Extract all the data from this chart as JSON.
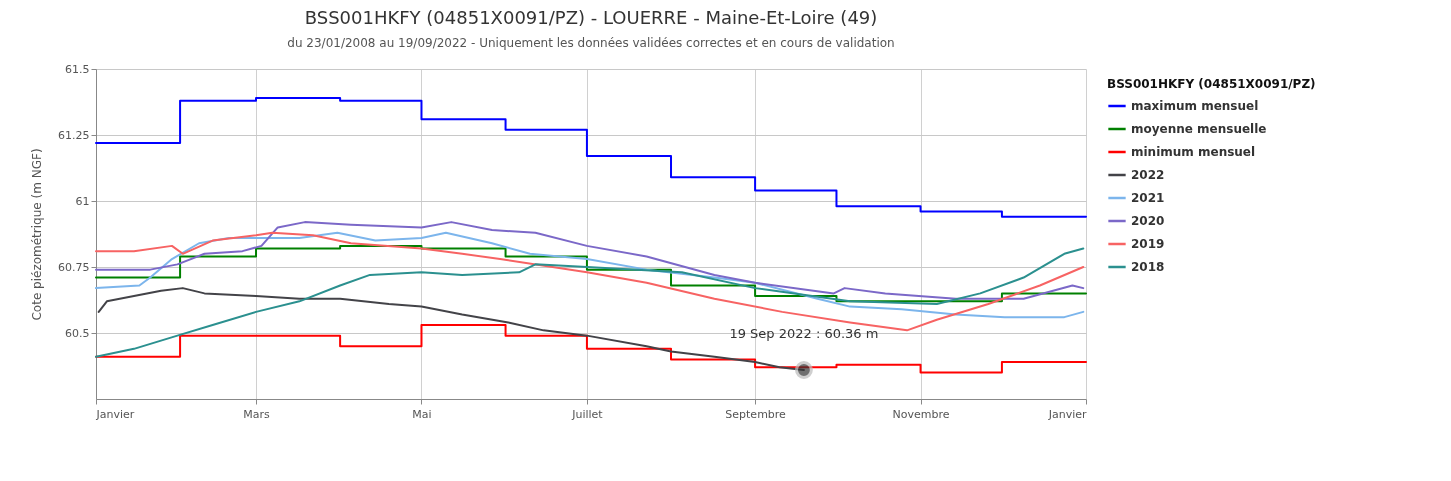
{
  "chart_data": {
    "type": "line",
    "title": "BSS001HKFY (04851X0091/PZ) - LOUERRE - Maine-Et-Loire (49)",
    "subtitle": "du 23/01/2008 au 19/09/2022 - Uniquement les données validées correctes et en cours de validation",
    "ylabel": "Cote piézométrique (m NGF)",
    "legend_title": "BSS001HKFY (04851X0091/PZ)",
    "xlim": [
      "2022-01-01",
      "2023-01-01"
    ],
    "xticks": [
      {
        "value": "2022-01-01",
        "label": "Janvier"
      },
      {
        "value": "2022-03-01",
        "label": "Mars"
      },
      {
        "value": "2022-05-01",
        "label": "Mai"
      },
      {
        "value": "2022-07-01",
        "label": "Juillet"
      },
      {
        "value": "2022-09-01",
        "label": "Septembre"
      },
      {
        "value": "2022-11-01",
        "label": "Novembre"
      },
      {
        "value": "2023-01-01",
        "label": "Janvier"
      }
    ],
    "ylim": [
      60.25,
      61.5
    ],
    "yticks": [
      60.5,
      60.75,
      61,
      61.25,
      61.5
    ],
    "grid": true,
    "legend": "right",
    "marker": "none",
    "line_style": "solid",
    "annotations": [
      {
        "text": "19 Sep 2022 : 60.36 m",
        "x": "2022-09-19",
        "y": 60.36
      }
    ],
    "series": [
      {
        "name": "maximum mensuel",
        "type": "step",
        "color": "#0000ff",
        "x": [
          "2022-01-01",
          "2022-02-01",
          "2022-03-01",
          "2022-04-01",
          "2022-05-01",
          "2022-06-01",
          "2022-07-01",
          "2022-08-01",
          "2022-09-01",
          "2022-10-01",
          "2022-11-01",
          "2022-12-01",
          "2023-01-01"
        ],
        "values": [
          61.22,
          61.38,
          61.39,
          61.38,
          61.31,
          61.27,
          61.17,
          61.09,
          61.04,
          60.98,
          60.96,
          60.94,
          60.94
        ]
      },
      {
        "name": "moyenne mensuelle",
        "type": "step",
        "color": "#008000",
        "x": [
          "2022-01-01",
          "2022-02-01",
          "2022-03-01",
          "2022-04-01",
          "2022-05-01",
          "2022-06-01",
          "2022-07-01",
          "2022-08-01",
          "2022-09-01",
          "2022-10-01",
          "2022-11-01",
          "2022-12-01",
          "2023-01-01"
        ],
        "values": [
          60.71,
          60.79,
          60.82,
          60.83,
          60.82,
          60.79,
          60.74,
          60.68,
          60.64,
          60.62,
          60.62,
          60.65,
          60.65
        ]
      },
      {
        "name": "minimum mensuel",
        "type": "step",
        "color": "#ff0000",
        "x": [
          "2022-01-01",
          "2022-02-01",
          "2022-03-01",
          "2022-04-01",
          "2022-05-01",
          "2022-06-01",
          "2022-07-01",
          "2022-08-01",
          "2022-09-01",
          "2022-10-01",
          "2022-11-01",
          "2022-12-01",
          "2023-01-01"
        ],
        "values": [
          60.41,
          60.49,
          60.49,
          60.45,
          60.53,
          60.49,
          60.44,
          60.4,
          60.37,
          60.38,
          60.35,
          60.39,
          60.39
        ]
      },
      {
        "name": "2022",
        "color": "#434348",
        "x": [
          "2022-01-02",
          "2022-01-05",
          "2022-01-15",
          "2022-01-25",
          "2022-02-02",
          "2022-02-10",
          "2022-03-01",
          "2022-03-17",
          "2022-04-01",
          "2022-04-19",
          "2022-05-01",
          "2022-05-16",
          "2022-06-02",
          "2022-06-15",
          "2022-07-01",
          "2022-07-23",
          "2022-08-01",
          "2022-08-17",
          "2022-09-01",
          "2022-09-10",
          "2022-09-19"
        ],
        "values": [
          60.58,
          60.62,
          60.64,
          60.66,
          60.67,
          60.65,
          60.64,
          60.63,
          60.63,
          60.61,
          60.6,
          60.57,
          60.54,
          60.51,
          60.49,
          60.45,
          60.43,
          60.41,
          60.39,
          60.37,
          60.36
        ]
      },
      {
        "name": "2021",
        "color": "#7cb5ec",
        "x": [
          "2022-01-01",
          "2022-01-17",
          "2022-01-21",
          "2022-01-29",
          "2022-02-08",
          "2022-02-19",
          "2022-03-01",
          "2022-03-17",
          "2022-03-31",
          "2022-04-14",
          "2022-05-01",
          "2022-05-10",
          "2022-05-27",
          "2022-06-10",
          "2022-07-01",
          "2022-07-23",
          "2022-08-17",
          "2022-09-01",
          "2022-09-24",
          "2022-10-06",
          "2022-10-25",
          "2022-11-14",
          "2022-12-02",
          "2022-12-24",
          "2022-12-31"
        ],
        "values": [
          60.67,
          60.68,
          60.71,
          60.78,
          60.84,
          60.86,
          60.86,
          60.86,
          60.88,
          60.85,
          60.86,
          60.88,
          60.84,
          60.8,
          60.78,
          60.74,
          60.71,
          60.69,
          60.63,
          60.6,
          60.59,
          60.57,
          60.56,
          60.56,
          60.58
        ]
      },
      {
        "name": "2020",
        "color": "#7b68c8",
        "x": [
          "2022-01-01",
          "2022-01-21",
          "2022-01-31",
          "2022-02-10",
          "2022-02-24",
          "2022-03-03",
          "2022-03-09",
          "2022-03-19",
          "2022-04-05",
          "2022-05-01",
          "2022-05-12",
          "2022-05-27",
          "2022-06-12",
          "2022-07-01",
          "2022-07-23",
          "2022-08-17",
          "2022-09-01",
          "2022-09-30",
          "2022-10-04",
          "2022-10-19",
          "2022-11-14",
          "2022-11-30",
          "2022-12-09",
          "2022-12-27",
          "2022-12-31"
        ],
        "values": [
          60.74,
          60.74,
          60.76,
          60.8,
          60.81,
          60.83,
          60.9,
          60.92,
          60.91,
          60.9,
          60.92,
          60.89,
          60.88,
          60.83,
          60.79,
          60.72,
          60.69,
          60.65,
          60.67,
          60.65,
          60.63,
          60.63,
          60.63,
          60.68,
          60.67
        ]
      },
      {
        "name": "2019",
        "color": "#f76363",
        "x": [
          "2022-01-01",
          "2022-01-15",
          "2022-01-29",
          "2022-02-02",
          "2022-02-13",
          "2022-03-01",
          "2022-03-07",
          "2022-03-22",
          "2022-04-05",
          "2022-05-01",
          "2022-05-16",
          "2022-05-30",
          "2022-07-01",
          "2022-07-23",
          "2022-08-17",
          "2022-09-11",
          "2022-10-06",
          "2022-10-27",
          "2022-11-07",
          "2022-11-26",
          "2022-12-15",
          "2022-12-31"
        ],
        "values": [
          60.81,
          60.81,
          60.83,
          60.8,
          60.85,
          60.87,
          60.88,
          60.87,
          60.84,
          60.82,
          60.8,
          60.78,
          60.73,
          60.69,
          60.63,
          60.58,
          60.54,
          60.51,
          60.55,
          60.61,
          60.68,
          60.75
        ]
      },
      {
        "name": "2018",
        "color": "#2b908f",
        "x": [
          "2022-01-01",
          "2022-01-15",
          "2022-01-31",
          "2022-02-13",
          "2022-03-01",
          "2022-03-17",
          "2022-04-01",
          "2022-04-12",
          "2022-05-01",
          "2022-05-16",
          "2022-06-06",
          "2022-06-12",
          "2022-07-01",
          "2022-08-05",
          "2022-09-01",
          "2022-10-06",
          "2022-11-07",
          "2022-11-23",
          "2022-12-09",
          "2022-12-24",
          "2022-12-31"
        ],
        "values": [
          60.41,
          60.44,
          60.49,
          60.53,
          60.58,
          60.62,
          60.68,
          60.72,
          60.73,
          60.72,
          60.73,
          60.76,
          60.75,
          60.73,
          60.67,
          60.62,
          60.61,
          60.65,
          60.71,
          60.8,
          60.82
        ]
      }
    ]
  }
}
